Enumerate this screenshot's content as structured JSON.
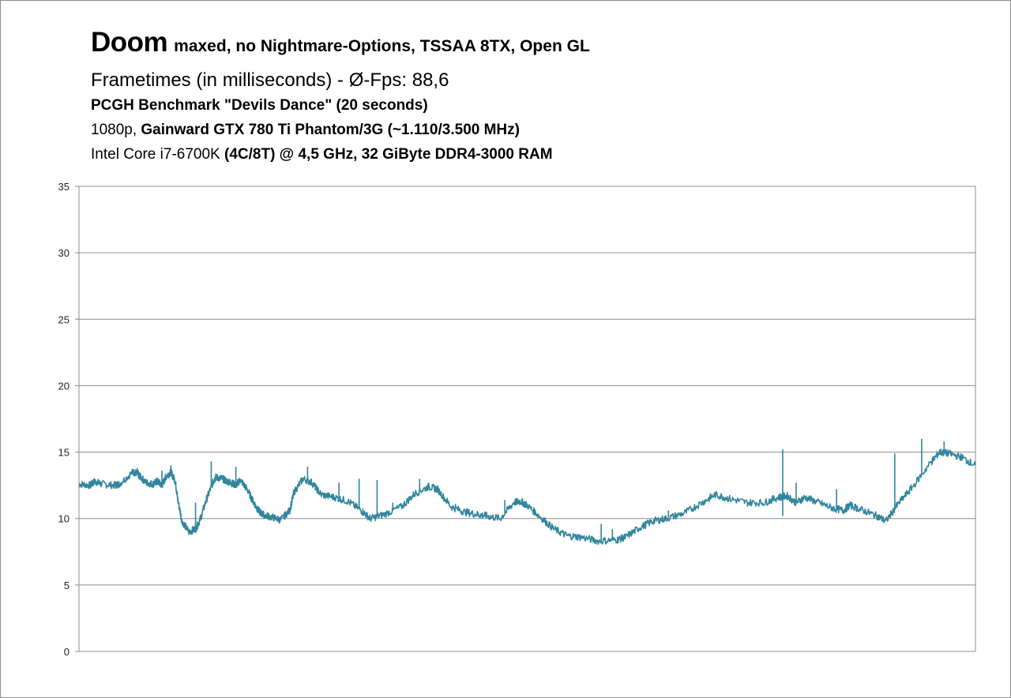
{
  "header": {
    "title_main": "Doom",
    "title_rest": "maxed, no Nightmare-Options,  TSSAA 8TX, Open GL",
    "subtitle": "Frametimes (in milliseconds) - Ø-Fps: 88,6",
    "line3": "PCGH Benchmark \"Devils Dance\" (20 seconds)",
    "line4_a": "1080p, ",
    "line4_b": "Gainward GTX 780 Ti Phantom/3G (~1.110/3.500 MHz)",
    "line5_a": "Intel Core i7-6700K ",
    "line5_b": "(4C/8T) @ 4,5 GHz, 32 GiByte DDR4-3000 RAM"
  },
  "chart_data": {
    "type": "line",
    "ylim": [
      0,
      35
    ],
    "xlim": [
      0,
      20
    ],
    "yticks": [
      "0",
      "5",
      "10",
      "15",
      "20",
      "25",
      "30",
      "35"
    ],
    "grid": true,
    "series_color": "#31859c",
    "series": [
      {
        "x": [
          0.0,
          0.25,
          0.35,
          0.5,
          0.8,
          0.9,
          1.2,
          1.3,
          1.35,
          1.5,
          1.65,
          1.75,
          1.85,
          1.95,
          2.05,
          2.15,
          2.2,
          2.3,
          2.45,
          2.6,
          2.7,
          2.85,
          3.0,
          3.05,
          3.2,
          3.3,
          3.4,
          3.5,
          3.6,
          3.75,
          3.9,
          4.0,
          4.1,
          4.3,
          4.5,
          4.7,
          4.8,
          5.0,
          5.2,
          5.4,
          5.7,
          6.0,
          6.3,
          6.5,
          6.8,
          7.2,
          7.5,
          7.8,
          8.0,
          8.3,
          8.6,
          8.9,
          9.1,
          9.4,
          9.7,
          9.85,
          10.0,
          10.3,
          10.6,
          10.9,
          11.2,
          11.6,
          12.0,
          12.2,
          12.5,
          12.8,
          13.1,
          13.5,
          13.9,
          14.2,
          14.5,
          14.9,
          15.3,
          15.6,
          15.8,
          16.0,
          16.2,
          16.5,
          16.8,
          17.05,
          17.2,
          17.5,
          17.8,
          18.0,
          18.3,
          18.6,
          19.0,
          19.2,
          19.4,
          19.7,
          20.0
        ],
        "y": [
          12.6,
          12.5,
          12.8,
          12.6,
          12.5,
          12.6,
          13.5,
          13.4,
          13.2,
          12.7,
          12.6,
          12.8,
          12.5,
          13.2,
          13.5,
          12.8,
          11.5,
          9.8,
          9.0,
          9.2,
          9.9,
          11.5,
          12.8,
          13.1,
          13.0,
          12.8,
          12.7,
          12.5,
          12.9,
          12.2,
          11.2,
          10.6,
          10.3,
          10.1,
          9.9,
          10.6,
          12.0,
          13.0,
          12.7,
          11.8,
          11.6,
          11.3,
          10.6,
          10.0,
          10.3,
          10.9,
          11.9,
          12.4,
          12.2,
          10.9,
          10.5,
          10.3,
          10.2,
          10.0,
          11.2,
          11.3,
          11.0,
          10.1,
          9.2,
          8.7,
          8.6,
          8.3,
          8.4,
          8.6,
          9.3,
          9.8,
          10.0,
          10.4,
          11.2,
          11.8,
          11.5,
          11.2,
          11.2,
          11.6,
          11.7,
          11.2,
          11.6,
          11.2,
          10.8,
          10.6,
          11.0,
          10.6,
          10.2,
          9.8,
          11.2,
          12.4,
          14.2,
          15.0,
          14.9,
          14.6,
          14.0
        ]
      }
    ],
    "spikes": [
      {
        "x": 1.3,
        "y": 13.8
      },
      {
        "x": 1.85,
        "y": 13.6
      },
      {
        "x": 2.05,
        "y": 14.0
      },
      {
        "x": 2.6,
        "y": 11.2
      },
      {
        "x": 2.95,
        "y": 14.3
      },
      {
        "x": 3.5,
        "y": 13.9
      },
      {
        "x": 5.1,
        "y": 13.9
      },
      {
        "x": 5.8,
        "y": 12.7
      },
      {
        "x": 6.25,
        "y": 13.0
      },
      {
        "x": 6.65,
        "y": 12.9
      },
      {
        "x": 7.0,
        "y": 11.2
      },
      {
        "x": 7.6,
        "y": 13.0
      },
      {
        "x": 8.4,
        "y": 11.1
      },
      {
        "x": 9.5,
        "y": 11.4
      },
      {
        "x": 11.65,
        "y": 9.6
      },
      {
        "x": 11.9,
        "y": 9.2
      },
      {
        "x": 13.15,
        "y": 10.6
      },
      {
        "x": 15.7,
        "y": 15.2
      },
      {
        "x": 15.7,
        "y": 10.2
      },
      {
        "x": 16.0,
        "y": 12.7
      },
      {
        "x": 16.9,
        "y": 12.2
      },
      {
        "x": 18.2,
        "y": 14.9
      },
      {
        "x": 18.8,
        "y": 16.0
      },
      {
        "x": 19.3,
        "y": 15.8
      },
      {
        "x": 19.8,
        "y": 14.1
      }
    ]
  }
}
